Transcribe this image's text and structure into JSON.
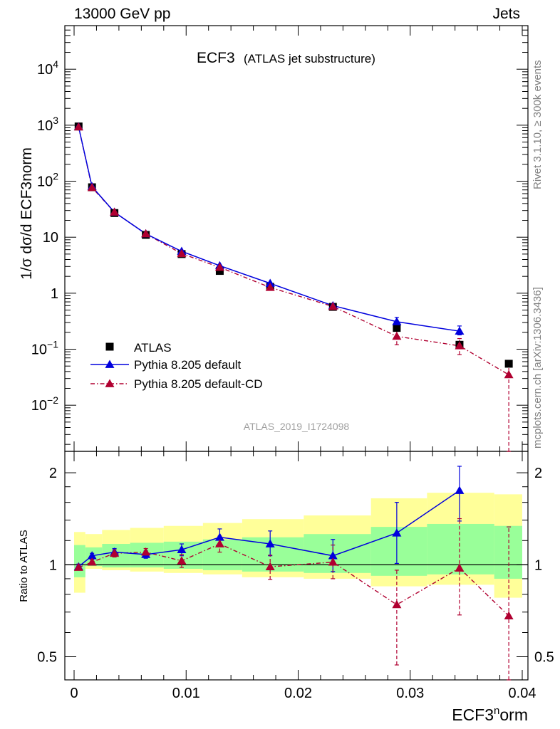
{
  "header": {
    "left": "13000 GeV pp",
    "right": "Jets"
  },
  "side_notes": {
    "rivet": "Rivet 3.1.10, ≥ 300k events",
    "mcplots": "mcplots.cern.ch [arXiv:1306.3436]"
  },
  "colors": {
    "atlas": "#000000",
    "default": "#0000dd",
    "cd": "#b00030",
    "band_yellow": "#ffff99",
    "band_green": "#99ff99"
  },
  "chart_data": [
    {
      "type": "scatter",
      "panel": "main",
      "title": "ECF3",
      "subtitle": "(ATLAS jet substructure)",
      "analysis_label": "ATLAS_2019_I1724098",
      "xlabel": "ECF3norm",
      "ylabel": "1/σ dσ/d ECF3norm",
      "yscale": "log",
      "xlim": [
        -0.0008,
        0.0405
      ],
      "ylim": [
        0.0015,
        60000
      ],
      "yticks": [
        0.01,
        0.1,
        1,
        10,
        100,
        1000,
        10000
      ],
      "ytick_labels": [
        {
          "b": "10",
          "e": "−2"
        },
        {
          "b": "10",
          "e": "−1"
        },
        {
          "b": "1",
          "e": ""
        },
        {
          "b": "10",
          "e": ""
        },
        {
          "b": "10",
          "e": "2"
        },
        {
          "b": "10",
          "e": "3"
        },
        {
          "b": "10",
          "e": "4"
        }
      ],
      "x": [
        0.0004,
        0.0016,
        0.0036,
        0.0064,
        0.0096,
        0.013,
        0.0175,
        0.0231,
        0.0288,
        0.0344,
        0.0388
      ],
      "legend": [
        "ATLAS",
        "Pythia 8.205 default",
        "Pythia 8.205 default-CD"
      ],
      "legend_position": "lower-left",
      "series": [
        {
          "name": "ATLAS",
          "values": [
            950,
            78,
            27,
            11,
            5.0,
            2.5,
            1.3,
            0.57,
            0.24,
            0.12,
            0.055
          ]
        },
        {
          "name": "Pythia 8.205 default",
          "values": [
            940,
            80,
            28,
            11.5,
            5.6,
            3.1,
            1.5,
            0.6,
            0.31,
            0.21
          ],
          "err_low": [
            0,
            0,
            0,
            0,
            0,
            0,
            0,
            0,
            0.04,
            0.03
          ],
          "err_high": [
            0,
            0,
            0,
            0,
            0,
            0,
            0,
            0,
            0.06,
            0.05
          ]
        },
        {
          "name": "Pythia 8.205 default-CD",
          "values": [
            930,
            77,
            28,
            11.5,
            5.1,
            2.9,
            1.27,
            0.58,
            0.17,
            0.115,
            0.035
          ],
          "err_low": [
            0,
            0,
            0,
            0,
            0,
            0,
            0,
            0,
            0.05,
            0.035,
            0.034
          ],
          "err_high": [
            0,
            0,
            0,
            0,
            0,
            0,
            0,
            0,
            0.05,
            0.04,
            0.025
          ]
        }
      ]
    },
    {
      "type": "scatter",
      "panel": "ratio",
      "ylabel": "Ratio to ATLAS",
      "xlabel": "ECF3norm",
      "yscale": "log",
      "xlim": [
        -0.0008,
        0.0405
      ],
      "ylim": [
        0.42,
        2.35
      ],
      "yticks": [
        0.5,
        1,
        2
      ],
      "ytick_labels": [
        "0.5",
        "1",
        "2"
      ],
      "xticks": [
        0,
        0.01,
        0.02,
        0.03,
        0.04
      ],
      "xtick_labels": [
        "0",
        "0.01",
        "0.02",
        "0.03",
        "0.04"
      ],
      "bin_edges": [
        0.0,
        0.001,
        0.0025,
        0.005,
        0.008,
        0.0115,
        0.015,
        0.0205,
        0.0265,
        0.0315,
        0.0375,
        0.04
      ],
      "band_yellow": {
        "low": [
          0.81,
          0.97,
          0.96,
          0.95,
          0.94,
          0.93,
          0.91,
          0.9,
          0.85,
          0.86,
          0.78
        ],
        "high": [
          1.28,
          1.26,
          1.3,
          1.32,
          1.34,
          1.37,
          1.41,
          1.45,
          1.65,
          1.72,
          1.7
        ]
      },
      "band_green": {
        "low": [
          0.91,
          0.99,
          0.98,
          0.98,
          0.97,
          0.96,
          0.95,
          0.94,
          0.92,
          0.93,
          0.9
        ],
        "high": [
          1.16,
          1.14,
          1.17,
          1.18,
          1.19,
          1.21,
          1.23,
          1.26,
          1.33,
          1.36,
          1.34
        ]
      },
      "x": [
        0.0004,
        0.0016,
        0.0036,
        0.0064,
        0.0096,
        0.013,
        0.0175,
        0.0231,
        0.0288,
        0.0344,
        0.0388
      ],
      "series": [
        {
          "name": "Pythia 8.205 default",
          "values": [
            0.985,
            1.07,
            1.1,
            1.08,
            1.12,
            1.23,
            1.17,
            1.07,
            1.27,
            1.75
          ],
          "err_low": [
            0.02,
            0.02,
            0.03,
            0.03,
            0.05,
            0.07,
            0.1,
            0.12,
            0.26,
            0.36
          ],
          "err_high": [
            0.02,
            0.02,
            0.03,
            0.03,
            0.05,
            0.08,
            0.12,
            0.14,
            0.33,
            0.35
          ]
        },
        {
          "name": "Pythia 8.205 default-CD",
          "values": [
            0.98,
            1.02,
            1.09,
            1.1,
            1.03,
            1.17,
            0.985,
            1.02,
            0.74,
            0.975,
            0.68
          ],
          "err_low": [
            0.02,
            0.02,
            0.03,
            0.03,
            0.05,
            0.07,
            0.09,
            0.12,
            0.27,
            0.29,
            0.3
          ],
          "err_high": [
            0.02,
            0.02,
            0.03,
            0.03,
            0.05,
            0.07,
            0.09,
            0.14,
            0.22,
            0.44,
            0.65
          ]
        }
      ]
    }
  ]
}
